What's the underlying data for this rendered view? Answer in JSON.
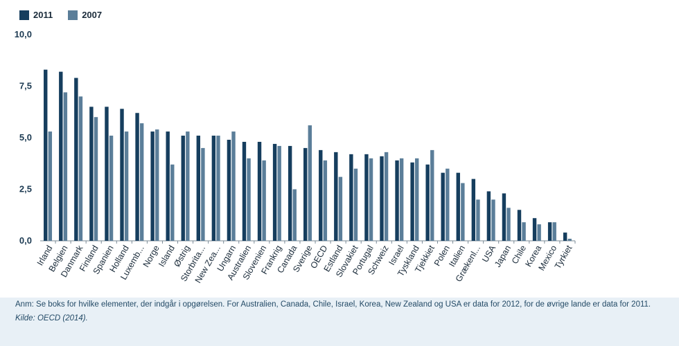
{
  "chart_data": {
    "type": "bar",
    "categories": [
      "Irland",
      "Belgien",
      "Danmark",
      "Finland",
      "Spanien",
      "Holland",
      "Luxemb...",
      "Norge",
      "Island",
      "Østrig",
      "Storbrita...",
      "New Zea...",
      "Ungarn",
      "Australien",
      "Slovenien",
      "Frankrig",
      "Canada",
      "Sverige",
      "OECD",
      "Estland",
      "Slovakiet",
      "Portugal",
      "Schweiz",
      "Israel",
      "Tyskland",
      "Tjekkiet",
      "Polen",
      "Italien",
      "Grækenl...",
      "USA",
      "Japan",
      "Chile",
      "Korea",
      "Mexico",
      "Tyrkiet"
    ],
    "series": [
      {
        "name": "2011",
        "color": "#163e5e",
        "values": [
          8.3,
          8.2,
          7.9,
          6.5,
          6.5,
          6.4,
          6.2,
          5.3,
          5.3,
          5.1,
          5.1,
          5.1,
          4.9,
          4.8,
          4.8,
          4.7,
          4.6,
          4.5,
          4.4,
          4.3,
          4.2,
          4.2,
          4.1,
          3.9,
          3.8,
          3.7,
          3.3,
          3.3,
          3.0,
          2.4,
          2.3,
          1.5,
          1.1,
          0.9,
          0.4
        ]
      },
      {
        "name": "2007",
        "color": "#5b7e99",
        "values": [
          5.3,
          7.2,
          7.0,
          6.0,
          5.1,
          5.3,
          5.7,
          5.4,
          3.7,
          5.3,
          4.5,
          5.1,
          5.3,
          4.0,
          3.9,
          4.6,
          2.5,
          5.6,
          3.9,
          3.1,
          3.5,
          4.0,
          4.3,
          4.0,
          4.0,
          4.4,
          3.5,
          2.8,
          2.0,
          2.0,
          1.6,
          0.9,
          0.8,
          0.9,
          0.1
        ]
      }
    ],
    "yticks": [
      "0,0",
      "2,5",
      "5,0",
      "7,5",
      "10,0"
    ],
    "ylim": [
      0,
      10
    ],
    "title": "",
    "xlabel": "",
    "ylabel": "",
    "grid": false,
    "legend": "top-left"
  },
  "footer": {
    "note": "Anm: Se boks for hvilke elementer, der indgår i opgørelsen. For Australien, Canada, Chile, Israel, Korea, New Zealand og USA er data for 2012, for de øvrige lande er data for 2011.",
    "source": "Kilde: OECD (2014)."
  }
}
